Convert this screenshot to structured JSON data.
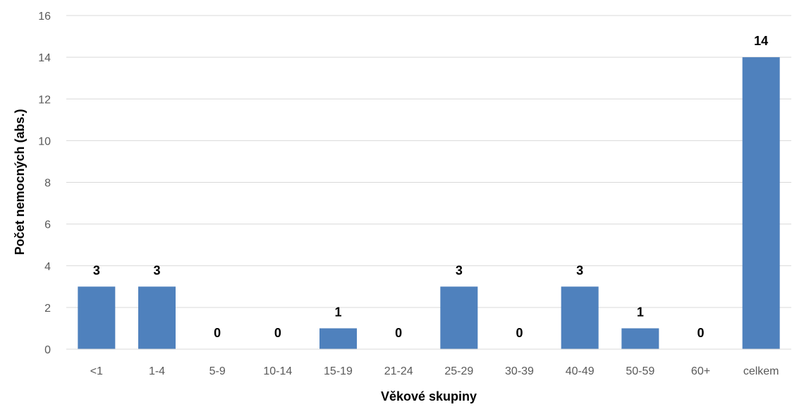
{
  "chart_data": {
    "type": "bar",
    "categories": [
      "<1",
      "1-4",
      "5-9",
      "10-14",
      "15-19",
      "21-24",
      "25-29",
      "30-39",
      "40-49",
      "50-59",
      "60+",
      "celkem"
    ],
    "values": [
      3,
      3,
      0,
      0,
      1,
      0,
      3,
      0,
      3,
      1,
      0,
      14
    ],
    "title": "",
    "xlabel": "Věkové skupiny",
    "ylabel": "Počet nemocných (abs.)",
    "ylim": [
      0,
      16
    ],
    "yticks": [
      0,
      2,
      4,
      6,
      8,
      10,
      12,
      14,
      16
    ],
    "grid": true,
    "legend": "none",
    "bar_color": "#4f81bd",
    "grid_color": "#d9d9d9",
    "data_labels": true
  }
}
